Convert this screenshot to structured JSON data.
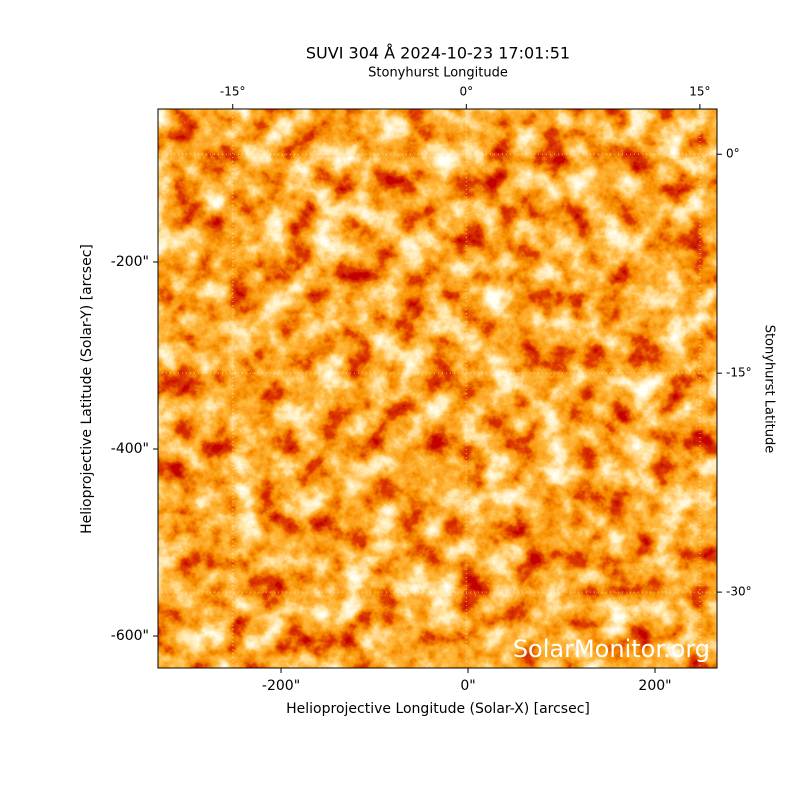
{
  "chart_data": {
    "type": "image",
    "title": "SUVI 304 Å 2024-10-23 17:01:51",
    "xlabel": "Helioprojective Longitude (Solar-X) [arcsec]",
    "ylabel": "Helioprojective Latitude (Solar-Y) [arcsec]",
    "x2label": "Stonyhurst Longitude",
    "y2label": "Stonyhurst Latitude",
    "watermark": "SolarMonitor.org",
    "xlim": [
      -331.6,
      266.3
    ],
    "ylim": [
      -634.2,
      -36.4
    ],
    "xticks": [
      {
        "value": -200,
        "label": "-200\""
      },
      {
        "value": 0,
        "label": "0\""
      },
      {
        "value": 200,
        "label": "200\""
      }
    ],
    "yticks": [
      {
        "value": -200,
        "label": "-200\""
      },
      {
        "value": -400,
        "label": "-400\""
      },
      {
        "value": -600,
        "label": "-600\""
      }
    ],
    "x2lim": [
      -19.8,
      16.1
    ],
    "x2ticks": [
      {
        "value": -15,
        "label": "-15°"
      },
      {
        "value": 0,
        "label": "0°"
      },
      {
        "value": 15,
        "label": "15°"
      }
    ],
    "y2lim": [
      -35.2,
      3.1
    ],
    "y2ticks": [
      {
        "value": 0,
        "label": "0°"
      },
      {
        "value": -15,
        "label": "-15°"
      },
      {
        "value": -30,
        "label": "-30°"
      }
    ],
    "grid": true
  }
}
